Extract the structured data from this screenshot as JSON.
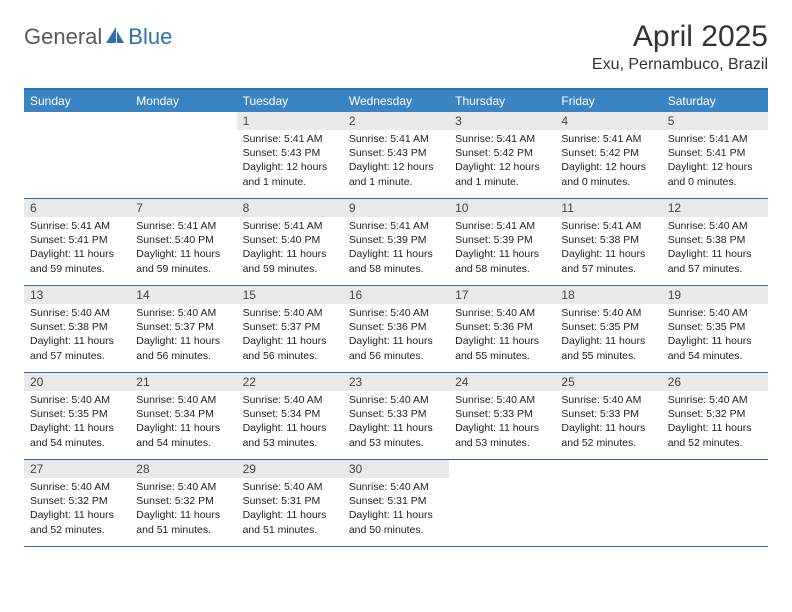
{
  "logo": {
    "general": "General",
    "blue": "Blue"
  },
  "title": "April 2025",
  "location": "Exu, Pernambuco, Brazil",
  "colors": {
    "header_bg": "#3b84c4",
    "header_text": "#ffffff",
    "border": "#2c6fb5",
    "daynum_bg": "#e9e9e9",
    "text": "#222222",
    "logo_gray": "#5a5a5a",
    "logo_blue": "#2c6fb5"
  },
  "weekdays": [
    "Sunday",
    "Monday",
    "Tuesday",
    "Wednesday",
    "Thursday",
    "Friday",
    "Saturday"
  ],
  "weeks": [
    [
      {
        "empty": true
      },
      {
        "empty": true
      },
      {
        "num": "1",
        "sunrise": "Sunrise: 5:41 AM",
        "sunset": "Sunset: 5:43 PM",
        "daylight": "Daylight: 12 hours and 1 minute."
      },
      {
        "num": "2",
        "sunrise": "Sunrise: 5:41 AM",
        "sunset": "Sunset: 5:43 PM",
        "daylight": "Daylight: 12 hours and 1 minute."
      },
      {
        "num": "3",
        "sunrise": "Sunrise: 5:41 AM",
        "sunset": "Sunset: 5:42 PM",
        "daylight": "Daylight: 12 hours and 1 minute."
      },
      {
        "num": "4",
        "sunrise": "Sunrise: 5:41 AM",
        "sunset": "Sunset: 5:42 PM",
        "daylight": "Daylight: 12 hours and 0 minutes."
      },
      {
        "num": "5",
        "sunrise": "Sunrise: 5:41 AM",
        "sunset": "Sunset: 5:41 PM",
        "daylight": "Daylight: 12 hours and 0 minutes."
      }
    ],
    [
      {
        "num": "6",
        "sunrise": "Sunrise: 5:41 AM",
        "sunset": "Sunset: 5:41 PM",
        "daylight": "Daylight: 11 hours and 59 minutes."
      },
      {
        "num": "7",
        "sunrise": "Sunrise: 5:41 AM",
        "sunset": "Sunset: 5:40 PM",
        "daylight": "Daylight: 11 hours and 59 minutes."
      },
      {
        "num": "8",
        "sunrise": "Sunrise: 5:41 AM",
        "sunset": "Sunset: 5:40 PM",
        "daylight": "Daylight: 11 hours and 59 minutes."
      },
      {
        "num": "9",
        "sunrise": "Sunrise: 5:41 AM",
        "sunset": "Sunset: 5:39 PM",
        "daylight": "Daylight: 11 hours and 58 minutes."
      },
      {
        "num": "10",
        "sunrise": "Sunrise: 5:41 AM",
        "sunset": "Sunset: 5:39 PM",
        "daylight": "Daylight: 11 hours and 58 minutes."
      },
      {
        "num": "11",
        "sunrise": "Sunrise: 5:41 AM",
        "sunset": "Sunset: 5:38 PM",
        "daylight": "Daylight: 11 hours and 57 minutes."
      },
      {
        "num": "12",
        "sunrise": "Sunrise: 5:40 AM",
        "sunset": "Sunset: 5:38 PM",
        "daylight": "Daylight: 11 hours and 57 minutes."
      }
    ],
    [
      {
        "num": "13",
        "sunrise": "Sunrise: 5:40 AM",
        "sunset": "Sunset: 5:38 PM",
        "daylight": "Daylight: 11 hours and 57 minutes."
      },
      {
        "num": "14",
        "sunrise": "Sunrise: 5:40 AM",
        "sunset": "Sunset: 5:37 PM",
        "daylight": "Daylight: 11 hours and 56 minutes."
      },
      {
        "num": "15",
        "sunrise": "Sunrise: 5:40 AM",
        "sunset": "Sunset: 5:37 PM",
        "daylight": "Daylight: 11 hours and 56 minutes."
      },
      {
        "num": "16",
        "sunrise": "Sunrise: 5:40 AM",
        "sunset": "Sunset: 5:36 PM",
        "daylight": "Daylight: 11 hours and 56 minutes."
      },
      {
        "num": "17",
        "sunrise": "Sunrise: 5:40 AM",
        "sunset": "Sunset: 5:36 PM",
        "daylight": "Daylight: 11 hours and 55 minutes."
      },
      {
        "num": "18",
        "sunrise": "Sunrise: 5:40 AM",
        "sunset": "Sunset: 5:35 PM",
        "daylight": "Daylight: 11 hours and 55 minutes."
      },
      {
        "num": "19",
        "sunrise": "Sunrise: 5:40 AM",
        "sunset": "Sunset: 5:35 PM",
        "daylight": "Daylight: 11 hours and 54 minutes."
      }
    ],
    [
      {
        "num": "20",
        "sunrise": "Sunrise: 5:40 AM",
        "sunset": "Sunset: 5:35 PM",
        "daylight": "Daylight: 11 hours and 54 minutes."
      },
      {
        "num": "21",
        "sunrise": "Sunrise: 5:40 AM",
        "sunset": "Sunset: 5:34 PM",
        "daylight": "Daylight: 11 hours and 54 minutes."
      },
      {
        "num": "22",
        "sunrise": "Sunrise: 5:40 AM",
        "sunset": "Sunset: 5:34 PM",
        "daylight": "Daylight: 11 hours and 53 minutes."
      },
      {
        "num": "23",
        "sunrise": "Sunrise: 5:40 AM",
        "sunset": "Sunset: 5:33 PM",
        "daylight": "Daylight: 11 hours and 53 minutes."
      },
      {
        "num": "24",
        "sunrise": "Sunrise: 5:40 AM",
        "sunset": "Sunset: 5:33 PM",
        "daylight": "Daylight: 11 hours and 53 minutes."
      },
      {
        "num": "25",
        "sunrise": "Sunrise: 5:40 AM",
        "sunset": "Sunset: 5:33 PM",
        "daylight": "Daylight: 11 hours and 52 minutes."
      },
      {
        "num": "26",
        "sunrise": "Sunrise: 5:40 AM",
        "sunset": "Sunset: 5:32 PM",
        "daylight": "Daylight: 11 hours and 52 minutes."
      }
    ],
    [
      {
        "num": "27",
        "sunrise": "Sunrise: 5:40 AM",
        "sunset": "Sunset: 5:32 PM",
        "daylight": "Daylight: 11 hours and 52 minutes."
      },
      {
        "num": "28",
        "sunrise": "Sunrise: 5:40 AM",
        "sunset": "Sunset: 5:32 PM",
        "daylight": "Daylight: 11 hours and 51 minutes."
      },
      {
        "num": "29",
        "sunrise": "Sunrise: 5:40 AM",
        "sunset": "Sunset: 5:31 PM",
        "daylight": "Daylight: 11 hours and 51 minutes."
      },
      {
        "num": "30",
        "sunrise": "Sunrise: 5:40 AM",
        "sunset": "Sunset: 5:31 PM",
        "daylight": "Daylight: 11 hours and 50 minutes."
      },
      {
        "empty": true
      },
      {
        "empty": true
      },
      {
        "empty": true
      }
    ]
  ]
}
